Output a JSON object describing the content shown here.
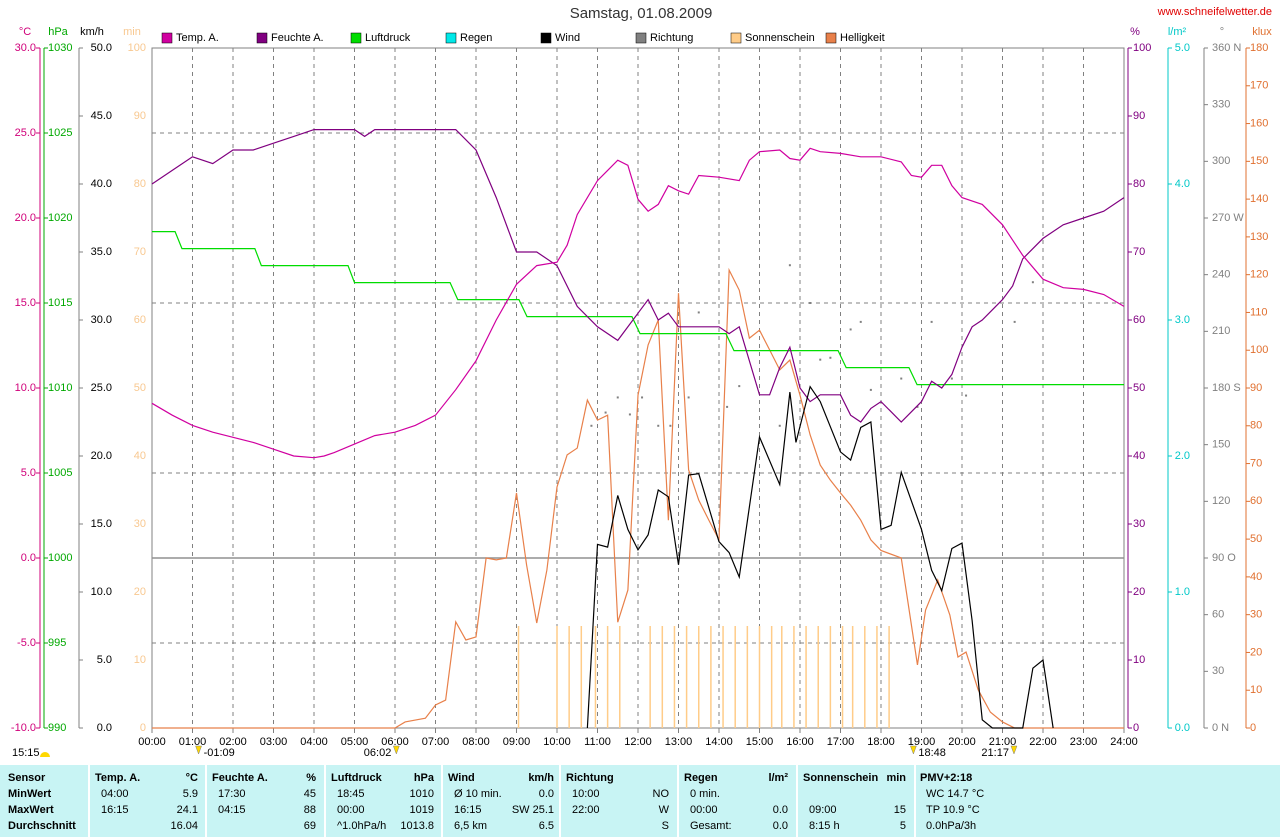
{
  "chart_data": {
    "type": "line",
    "title": "Samstag, 01.08.2009",
    "source": "www.schneifelwetter.de",
    "xlim": [
      0,
      24
    ],
    "xticks": [
      {
        "value": 0,
        "label": "00:00"
      },
      {
        "value": 1,
        "label": "01:00"
      },
      {
        "value": 2,
        "label": "02:00"
      },
      {
        "value": 3,
        "label": "03:00"
      },
      {
        "value": 4,
        "label": "04:00"
      },
      {
        "value": 5,
        "label": "05:00"
      },
      {
        "value": 6,
        "label": "06:00"
      },
      {
        "value": 7,
        "label": "07:00"
      },
      {
        "value": 8,
        "label": "08:00"
      },
      {
        "value": 9,
        "label": "09:00"
      },
      {
        "value": 10,
        "label": "10:00"
      },
      {
        "value": 11,
        "label": "11:00"
      },
      {
        "value": 12,
        "label": "12:00"
      },
      {
        "value": 13,
        "label": "13:00"
      },
      {
        "value": 14,
        "label": "14:00"
      },
      {
        "value": 15,
        "label": "15:00"
      },
      {
        "value": 16,
        "label": "16:00"
      },
      {
        "value": 17,
        "label": "17:00"
      },
      {
        "value": 18,
        "label": "18:00"
      },
      {
        "value": 19,
        "label": "19:00"
      },
      {
        "value": 20,
        "label": "20:00"
      },
      {
        "value": 21,
        "label": "21:00"
      },
      {
        "value": 22,
        "label": "22:00"
      },
      {
        "value": 23,
        "label": "23:00"
      },
      {
        "value": 24,
        "label": "24:00"
      }
    ],
    "grid": true,
    "axes": [
      {
        "label": "°C",
        "color": "#d0007a",
        "ylim": [
          -10,
          30
        ],
        "yticks": [
          {
            "value": -10,
            "label": "-10.0"
          },
          {
            "value": -5,
            "label": "-5.0"
          },
          {
            "value": 0,
            "label": "0.0"
          },
          {
            "value": 5,
            "label": "5.0"
          },
          {
            "value": 10,
            "label": "10.0"
          },
          {
            "value": 15,
            "label": "15.0"
          },
          {
            "value": 20,
            "label": "20.0"
          },
          {
            "value": 25,
            "label": "25.0"
          },
          {
            "value": 30,
            "label": "30.0"
          }
        ]
      },
      {
        "label": "hPa",
        "color": "#00a800",
        "ylim": [
          990,
          1030
        ],
        "yticks": [
          990,
          995,
          1000,
          1005,
          1010,
          1015,
          1020,
          1025,
          1030
        ]
      },
      {
        "label": "km/h",
        "color": "#000000",
        "ylim": [
          0,
          50
        ],
        "yticks": [
          {
            "value": 0,
            "label": "0.0"
          },
          {
            "value": 5,
            "label": "5.0"
          },
          {
            "value": 10,
            "label": "10.0"
          },
          {
            "value": 15,
            "label": "15.0"
          },
          {
            "value": 20,
            "label": "20.0"
          },
          {
            "value": 25,
            "label": "25.0"
          },
          {
            "value": 30,
            "label": "30.0"
          },
          {
            "value": 35,
            "label": "35.0"
          },
          {
            "value": 40,
            "label": "40.0"
          },
          {
            "value": 45,
            "label": "45.0"
          },
          {
            "value": 50,
            "label": "50.0"
          }
        ]
      },
      {
        "label": "min",
        "color": "#f8c890",
        "ylim": [
          0,
          100
        ],
        "yticks": [
          0,
          10,
          20,
          30,
          40,
          50,
          60,
          70,
          80,
          90,
          100
        ]
      },
      {
        "label": "%",
        "color": "#800080",
        "ylim": [
          0,
          100
        ],
        "yticks": [
          0,
          10,
          20,
          30,
          40,
          50,
          60,
          70,
          80,
          90,
          100
        ]
      },
      {
        "label": "l/m²",
        "color": "#00c8c8",
        "ylim": [
          0,
          5
        ],
        "yticks": [
          {
            "value": 0,
            "label": "0.0"
          },
          {
            "value": 1,
            "label": "1.0"
          },
          {
            "value": 2,
            "label": "2.0"
          },
          {
            "value": 3,
            "label": "3.0"
          },
          {
            "value": 4,
            "label": "4.0"
          },
          {
            "value": 5,
            "label": "5.0"
          }
        ]
      },
      {
        "label": "°",
        "color": "#808080",
        "ylim": [
          0,
          360
        ],
        "yticks": [
          {
            "value": 0,
            "label": "0 N"
          },
          30,
          60,
          {
            "value": 90,
            "label": "90 O"
          },
          120,
          150,
          {
            "value": 180,
            "label": "180 S"
          },
          210,
          240,
          {
            "value": 270,
            "label": "270 W"
          },
          300,
          330,
          {
            "value": 360,
            "label": "360 N"
          }
        ]
      },
      {
        "label": "klux",
        "color": "#e07030",
        "ylim": [
          0,
          180
        ],
        "yticks": [
          0,
          10,
          20,
          30,
          40,
          50,
          60,
          70,
          80,
          90,
          100,
          110,
          120,
          130,
          140,
          150,
          160,
          170,
          180
        ]
      }
    ],
    "series": [
      {
        "name": "Temp. A.",
        "color": "#d000a0",
        "axis": "°C",
        "type": "line",
        "x": [
          0,
          0.5,
          1,
          1.5,
          2,
          2.5,
          3,
          3.5,
          4,
          4.25,
          4.5,
          5,
          5.5,
          6,
          6.5,
          7,
          7.5,
          8,
          8.5,
          9,
          9.5,
          10,
          10.25,
          10.5,
          11,
          11.25,
          11.5,
          11.75,
          12,
          12.25,
          12.5,
          12.75,
          13,
          13.25,
          13.5,
          14,
          14.5,
          14.75,
          15,
          15.5,
          15.75,
          16,
          16.25,
          16.5,
          17,
          17.5,
          18,
          18.5,
          18.75,
          19,
          19.25,
          19.5,
          19.75,
          20,
          20.5,
          21,
          21.5,
          22,
          22.5,
          23,
          23.5,
          24
        ],
        "values": [
          9.1,
          8.4,
          7.8,
          7.4,
          7.1,
          6.8,
          6.4,
          6.0,
          5.9,
          6.0,
          6.2,
          6.7,
          7.2,
          7.4,
          7.8,
          8.4,
          9.9,
          11.6,
          14.0,
          16.1,
          17.2,
          17.4,
          18.4,
          20.2,
          22.2,
          22.8,
          23.4,
          23.1,
          21.1,
          20.4,
          20.8,
          21.9,
          21.6,
          21.4,
          22.5,
          22.4,
          22.2,
          23.4,
          23.9,
          24.0,
          23.5,
          23.4,
          24.1,
          23.9,
          23.8,
          23.6,
          23.6,
          23.3,
          22.5,
          22.4,
          23.1,
          23.1,
          21.9,
          21.2,
          20.8,
          19.6,
          17.8,
          16.4,
          15.9,
          15.8,
          15.5,
          14.8
        ]
      },
      {
        "name": "Feuchte A.",
        "color": "#800080",
        "axis": "%",
        "type": "line",
        "x": [
          0,
          0.5,
          1,
          1.5,
          2,
          2.5,
          3,
          3.5,
          4,
          5,
          5.25,
          5.5,
          7.5,
          8,
          8.5,
          9,
          9.5,
          10,
          10.5,
          11,
          11.5,
          12,
          12.25,
          12.5,
          12.75,
          13,
          13.5,
          14,
          14.25,
          14.5,
          15,
          15.25,
          15.5,
          15.75,
          16,
          16.25,
          16.5,
          17,
          17.25,
          17.5,
          17.75,
          18,
          18.5,
          19,
          19.25,
          19.5,
          19.75,
          20,
          20.25,
          20.5,
          21,
          21.25,
          21.5,
          22,
          22.5,
          23,
          23.5,
          24
        ],
        "values": [
          80,
          82,
          84,
          83,
          85,
          85,
          86,
          87,
          88,
          88,
          87,
          88,
          88,
          85,
          78,
          70,
          70,
          68,
          62,
          59,
          57,
          61,
          63,
          60,
          61,
          59,
          59,
          59,
          58,
          59,
          49,
          49,
          53,
          56,
          50,
          48,
          49,
          49,
          46,
          45,
          47,
          48,
          45,
          48,
          51,
          50,
          52,
          56,
          59,
          60,
          63,
          65,
          69,
          72,
          74,
          75,
          76,
          78
        ]
      },
      {
        "name": "Luftdruck",
        "color": "#00dd00",
        "axis": "hPa",
        "type": "line",
        "x": [
          0,
          0.57,
          0.74,
          2.54,
          2.7,
          4.84,
          5,
          7.36,
          7.55,
          9.06,
          9.26,
          11.85,
          12.05,
          14.17,
          14.37,
          16.94,
          17.14,
          18.69,
          18.89,
          24
        ],
        "values": [
          1019.2,
          1019.2,
          1018.2,
          1018.2,
          1017.2,
          1017.2,
          1016.2,
          1016.2,
          1015.2,
          1015.2,
          1014.2,
          1014.2,
          1013.2,
          1013.2,
          1012.2,
          1012.2,
          1011.2,
          1011.2,
          1010.2,
          1010.2
        ]
      },
      {
        "name": "Regen",
        "color": "#00e8e8",
        "axis": "l/m²",
        "type": "line",
        "x": [],
        "values": []
      },
      {
        "name": "Wind",
        "color": "#000000",
        "axis": "km/h",
        "type": "line",
        "x": [
          10.75,
          11,
          11.25,
          11.5,
          11.75,
          12,
          12.25,
          12.5,
          12.75,
          13,
          13.25,
          13.5,
          14,
          14.25,
          14.5,
          15,
          15.5,
          15.75,
          15.9,
          16.25,
          16.5,
          17,
          17.25,
          17.5,
          17.75,
          18,
          18.25,
          18.5,
          19,
          19.25,
          19.5,
          19.75,
          20,
          20.25,
          20.5,
          20.75,
          21.5,
          21.75,
          22,
          22.25
        ],
        "values": [
          0,
          13.5,
          13.3,
          17.1,
          14.6,
          13.1,
          14.2,
          17.5,
          17.0,
          12.0,
          18.6,
          18.7,
          13.7,
          12.9,
          11.1,
          21.4,
          17.9,
          24.7,
          21.0,
          25.1,
          24.0,
          20.3,
          19.7,
          22.1,
          22.5,
          14.6,
          14.9,
          18.8,
          14.6,
          11.6,
          10.1,
          13.2,
          13.6,
          7.9,
          0.6,
          0,
          0,
          4.4,
          5.0,
          0
        ]
      },
      {
        "name": "Richtung",
        "color": "#808080",
        "axis": "°",
        "type": "dots",
        "x": [
          10.85,
          11.2,
          11.5,
          11.8,
          12.1,
          12.5,
          12.8,
          13.25,
          13.5,
          14.2,
          14.5,
          15.5,
          15.75,
          16.25,
          16.5,
          16.75,
          17.25,
          17.5,
          17.75,
          18.5,
          18.9,
          19.25,
          19.75,
          20.1,
          21.3,
          21.75
        ],
        "values": [
          160,
          167,
          175,
          166,
          175,
          160,
          160,
          175,
          220,
          170,
          181,
          160,
          245,
          225,
          195,
          196,
          211,
          215,
          179,
          185,
          170,
          215,
          185,
          176,
          215,
          236
        ]
      },
      {
        "name": "Sonnenschein",
        "color": "#ffcc88",
        "axis": "min",
        "type": "bars",
        "x": [
          9.05,
          10,
          10.3,
          10.6,
          10.95,
          11.25,
          11.55,
          12.3,
          12.6,
          12.9,
          13.2,
          13.5,
          13.8,
          14.1,
          14.4,
          14.7,
          15,
          15.3,
          15.55,
          15.85,
          16.15,
          16.45,
          16.75,
          17.05,
          17.3,
          17.6,
          17.9,
          18.2
        ],
        "values": [
          15,
          15,
          15,
          15,
          15,
          15,
          15,
          15,
          15,
          15,
          15,
          15,
          15,
          15,
          15,
          15,
          15,
          15,
          15,
          15,
          15,
          15,
          15,
          15,
          15,
          15,
          15,
          15
        ]
      },
      {
        "name": "Helligkeit",
        "color": "#e8804a",
        "axis": "klux",
        "type": "line",
        "x": [
          0,
          6,
          6.25,
          6.75,
          7,
          7.25,
          7.5,
          7.75,
          8,
          8.25,
          8.5,
          8.75,
          9,
          9.25,
          9.5,
          9.75,
          10,
          10.25,
          10.5,
          10.75,
          11,
          11.25,
          11.5,
          11.75,
          12,
          12.25,
          12.5,
          12.75,
          13,
          13.25,
          13.5,
          13.75,
          14,
          14.25,
          14.5,
          14.75,
          15,
          15.25,
          15.5,
          15.75,
          16,
          16.25,
          16.5,
          16.75,
          17,
          17.25,
          17.5,
          17.75,
          18,
          18.5,
          18.9,
          19.1,
          19.4,
          19.7,
          19.9,
          20.1,
          20.4,
          20.7,
          21,
          21.3,
          24
        ],
        "values": [
          0,
          0,
          1.6,
          2.6,
          6.1,
          7.4,
          28.1,
          23.3,
          24.1,
          45.0,
          44.5,
          45.0,
          62.2,
          43.1,
          27.8,
          41.8,
          63.8,
          72.3,
          74.1,
          86.8,
          81.5,
          82.8,
          28.0,
          36.5,
          88.1,
          101.4,
          108.0,
          55.0,
          115.1,
          68.3,
          60.3,
          55.0,
          49.8,
          121.2,
          115.9,
          103.2,
          105.3,
          100.1,
          94.8,
          97.4,
          88.1,
          77.6,
          69.6,
          65.6,
          62.2,
          59.0,
          55.0,
          49.8,
          47.0,
          45.0,
          16.7,
          31.2,
          39.2,
          29.9,
          18.8,
          20.1,
          10.1,
          4.2,
          1.6,
          0,
          0
        ]
      }
    ],
    "corner_note": "15:15",
    "annotations": [
      {
        "x": 1.15,
        "label": "-01:09"
      },
      {
        "x": 6.033,
        "label": "06:02"
      },
      {
        "x": 18.8,
        "label": "18:48"
      },
      {
        "x": 21.283,
        "label": "21:17"
      }
    ]
  },
  "table": {
    "header": [
      "Sensor",
      {
        "name": "Temp. A.",
        "unit": "°C"
      },
      {
        "name": "Feuchte A.",
        "unit": "%"
      },
      {
        "name": "Luftdruck",
        "unit": "hPa"
      },
      {
        "name": "Wind",
        "unit": "km/h"
      },
      {
        "name": "Richtung"
      },
      {
        "name": "Regen",
        "unit": "l/m²"
      },
      {
        "name": "Sonnenschein",
        "unit": "min"
      },
      {
        "name": "PMV+2:18"
      }
    ],
    "rows": [
      {
        "label": "MinWert",
        "cells": [
          {
            "left": "04:00",
            "right": "5.9"
          },
          {
            "left": "17:30",
            "right": "45"
          },
          {
            "left": "18:45",
            "right": "1010"
          },
          {
            "left": "Ø 10 min.",
            "right": "0.0"
          },
          {
            "left": "10:00",
            "right": "NO"
          },
          {
            "left": "0 min."
          },
          {},
          {
            "left": "WC 14.7 °C"
          }
        ]
      },
      {
        "label": "MaxWert",
        "cells": [
          {
            "left": "16:15",
            "right": "24.1"
          },
          {
            "left": "04:15",
            "right": "88"
          },
          {
            "left": "00:00",
            "right": "1019"
          },
          {
            "left": "16:15",
            "right": "SW 25.1"
          },
          {
            "left": "22:00",
            "right": "W"
          },
          {
            "left": "00:00",
            "right": "0.0"
          },
          {
            "left": "09:00",
            "right": "15"
          },
          {
            "left": "TP 10.9 °C"
          }
        ]
      },
      {
        "label": "Durchschnitt",
        "cells": [
          {
            "right": "16.04"
          },
          {
            "right": "69"
          },
          {
            "left": "^1.0hPa/h",
            "right": "1013.8"
          },
          {
            "left": "6,5 km",
            "right": "6.5"
          },
          {
            "right": "S"
          },
          {
            "left": "Gesamt:",
            "right": "0.0"
          },
          {
            "left": "8:15 h",
            "right": "5"
          },
          {
            "left": "0.0hPa/3h"
          }
        ]
      }
    ]
  }
}
